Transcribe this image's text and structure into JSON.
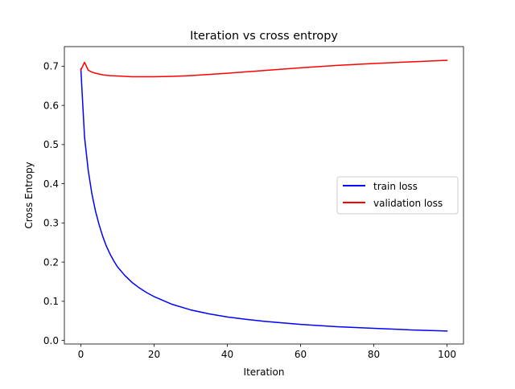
{
  "chart_data": {
    "type": "line",
    "title": "Iteration vs cross entropy",
    "xlabel": "Iteration",
    "ylabel": "Cross Entropy",
    "xlim": [
      -4.5,
      104.5
    ],
    "ylim": [
      -0.009,
      0.75
    ],
    "xticks": [
      0,
      20,
      40,
      60,
      80,
      100
    ],
    "yticks": [
      0.0,
      0.1,
      0.2,
      0.3,
      0.4,
      0.5,
      0.6,
      0.7
    ],
    "grid": false,
    "legend_position": "center-right",
    "series": [
      {
        "name": "train loss",
        "color": "#0000ff",
        "x": [
          0,
          1,
          2,
          3,
          4,
          5,
          6,
          7,
          8,
          9,
          10,
          12,
          14,
          16,
          18,
          20,
          25,
          30,
          35,
          40,
          45,
          50,
          60,
          70,
          80,
          90,
          100
        ],
        "y": [
          0.693,
          0.52,
          0.435,
          0.375,
          0.33,
          0.295,
          0.265,
          0.24,
          0.22,
          0.203,
          0.188,
          0.166,
          0.148,
          0.134,
          0.122,
          0.112,
          0.092,
          0.078,
          0.068,
          0.06,
          0.054,
          0.049,
          0.041,
          0.035,
          0.031,
          0.027,
          0.024
        ]
      },
      {
        "name": "validation loss",
        "color": "#ff0000",
        "x": [
          0,
          1,
          2,
          3,
          4,
          6,
          8,
          10,
          12,
          14,
          16,
          18,
          20,
          25,
          30,
          40,
          50,
          60,
          70,
          80,
          90,
          100
        ],
        "y": [
          0.69,
          0.71,
          0.69,
          0.685,
          0.682,
          0.678,
          0.676,
          0.675,
          0.674,
          0.673,
          0.673,
          0.673,
          0.673,
          0.674,
          0.676,
          0.682,
          0.689,
          0.696,
          0.702,
          0.707,
          0.711,
          0.715
        ]
      }
    ]
  }
}
